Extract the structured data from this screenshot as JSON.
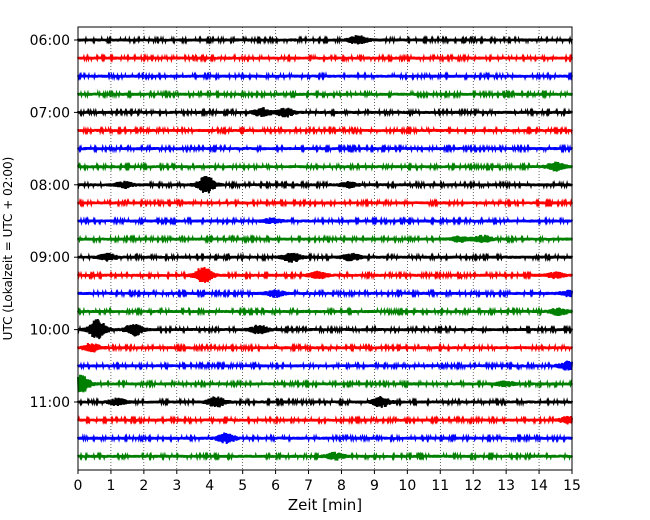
{
  "chart_data": {
    "type": "line",
    "title": "",
    "xlabel": "Zeit  [min]",
    "ylabel": "UTC (Lokalzeit = UTC + 02:00)",
    "xlim": [
      0,
      15
    ],
    "x_ticks": [
      "0",
      "1",
      "2",
      "3",
      "4",
      "5",
      "6",
      "7",
      "8",
      "9",
      "10",
      "11",
      "12",
      "13",
      "14",
      "15"
    ],
    "y_ticks": [
      "06:00",
      "07:00",
      "08:00",
      "09:00",
      "10:00",
      "11:00"
    ],
    "grid": "vertical dotted at each minute",
    "row_interval_min": 15,
    "start_time": "06:00",
    "colors": [
      "#000000",
      "#ff0000",
      "#0000ff",
      "#008000"
    ],
    "series": [
      {
        "values": [
          [
            8.5,
            0.5
          ]
        ]
      },
      {
        "values": []
      },
      {
        "values": []
      },
      {
        "values": []
      },
      {
        "values": [
          [
            5.6,
            0.5
          ],
          [
            6.3,
            0.5
          ]
        ]
      },
      {
        "values": []
      },
      {
        "values": []
      },
      {
        "values": [
          [
            14.5,
            0.5
          ]
        ]
      },
      {
        "values": [
          [
            1.4,
            0.35
          ],
          [
            3.9,
            1.0
          ],
          [
            8.2,
            0.3
          ]
        ]
      },
      {
        "values": []
      },
      {
        "values": [
          [
            5.9,
            0.3
          ]
        ]
      },
      {
        "values": [
          [
            11.6,
            0.3
          ],
          [
            12.3,
            0.4
          ]
        ]
      },
      {
        "values": [
          [
            0.9,
            0.4
          ],
          [
            6.5,
            0.6
          ],
          [
            8.3,
            0.4
          ]
        ]
      },
      {
        "values": [
          [
            3.8,
            1.0
          ],
          [
            7.3,
            0.4
          ],
          [
            14.5,
            0.3
          ]
        ]
      },
      {
        "values": [
          [
            6.0,
            0.4
          ],
          [
            14.9,
            0.3
          ]
        ]
      },
      {
        "values": [
          [
            14.6,
            0.4
          ]
        ]
      },
      {
        "values": [
          [
            0.6,
            1.2
          ],
          [
            1.7,
            0.7
          ],
          [
            5.5,
            0.5
          ]
        ]
      },
      {
        "values": [
          [
            0.4,
            0.5
          ]
        ]
      },
      {
        "values": [
          [
            14.9,
            0.6
          ]
        ]
      },
      {
        "values": [
          [
            0.1,
            1.0
          ],
          [
            13.0,
            0.3
          ]
        ]
      },
      {
        "values": [
          [
            1.2,
            0.4
          ],
          [
            4.2,
            0.6
          ],
          [
            9.2,
            0.6
          ]
        ]
      },
      {
        "values": [
          [
            14.9,
            0.4
          ]
        ]
      },
      {
        "values": [
          [
            4.5,
            0.6
          ]
        ]
      },
      {
        "values": [
          [
            7.8,
            0.4
          ]
        ]
      }
    ]
  }
}
